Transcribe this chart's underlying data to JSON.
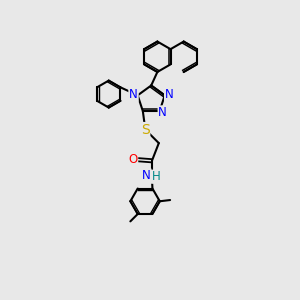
{
  "bg_color": "#e8e8e8",
  "bond_color": "#000000",
  "bond_width": 1.5,
  "atom_colors": {
    "N": "#0000ff",
    "O": "#ff0000",
    "S": "#ccaa00",
    "H": "#008888",
    "C": "#000000"
  },
  "font_size": 8.5,
  "fig_size": [
    3.0,
    3.0
  ],
  "dpi": 100
}
